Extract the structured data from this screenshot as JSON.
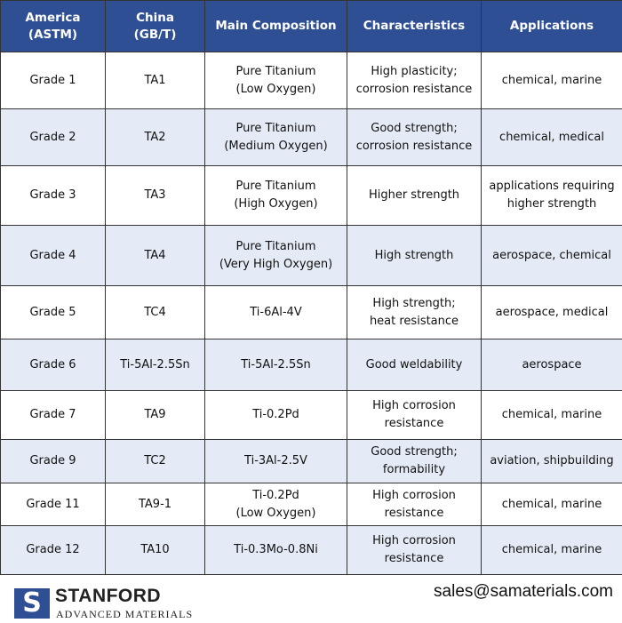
{
  "table": {
    "header": [
      "America\n(ASTM)",
      "China\n(GB/T)",
      "Main Composition",
      "Characteristics",
      "Applications"
    ],
    "rows": [
      [
        "Grade 1",
        "TA1",
        "Pure Titanium\n(Low Oxygen)",
        "High plasticity;\ncorrosion resistance",
        "chemical, marine"
      ],
      [
        "Grade 2",
        "TA2",
        "Pure Titanium\n(Medium Oxygen)",
        "Good strength;\ncorrosion resistance",
        "chemical, medical"
      ],
      [
        "Grade 3",
        "TA3",
        "Pure Titanium\n(High Oxygen)",
        "Higher strength",
        "applications requiring\nhigher strength"
      ],
      [
        "Grade 4",
        "TA4",
        "Pure Titanium\n(Very High Oxygen)",
        "High strength",
        "aerospace, chemical"
      ],
      [
        "Grade 5",
        "TC4",
        "Ti-6Al-4V",
        "High strength;\nheat resistance",
        "aerospace, medical"
      ],
      [
        "Grade 6",
        "Ti-5Al-2.5Sn",
        "Ti-5Al-2.5Sn",
        "Good weldability",
        "aerospace"
      ],
      [
        "Grade 7",
        "TA9",
        "Ti-0.2Pd",
        "High corrosion\nresistance",
        "chemical, marine"
      ],
      [
        "Grade 9",
        "TC2",
        "Ti-3Al-2.5V",
        "Good strength;\nformability",
        "aviation, shipbuilding"
      ],
      [
        "Grade 11",
        "TA9-1",
        "Ti-0.2Pd\n(Low Oxygen)",
        "High corrosion\nresistance",
        "chemical, marine"
      ],
      [
        "Grade 12",
        "TA10",
        "Ti-0.3Mo-0.8Ni",
        "High corrosion\nresistance",
        "chemical, marine"
      ]
    ]
  },
  "footer": {
    "logo_letter": "S",
    "brand": "STANFORD",
    "subtitle": "ADVANCED MATERIALS",
    "email": "sales@samaterials.com"
  }
}
